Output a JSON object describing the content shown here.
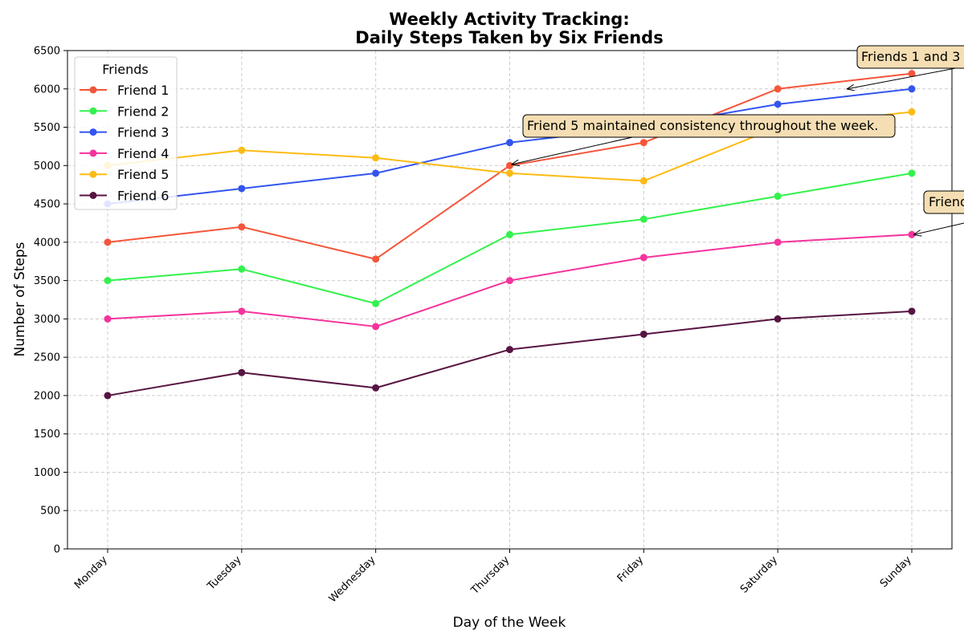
{
  "chart_data": {
    "type": "line",
    "title_line1": "Weekly Activity Tracking:",
    "title_line2": "Daily Steps Taken by Six Friends",
    "xlabel": "Day of the Week",
    "ylabel": "Number of Steps",
    "categories": [
      "Monday",
      "Tuesday",
      "Wednesday",
      "Thursday",
      "Friday",
      "Saturday",
      "Sunday"
    ],
    "ylim": [
      0,
      6500
    ],
    "yticks": [
      0,
      500,
      1000,
      1500,
      2000,
      2500,
      3000,
      3500,
      4000,
      4500,
      5000,
      5500,
      6000,
      6500
    ],
    "grid": true,
    "legend": {
      "title": "Friends",
      "placement": "upper-left"
    },
    "series": [
      {
        "name": "Friend 1",
        "color": "#f5553a",
        "values": [
          4000,
          4200,
          3780,
          5000,
          5300,
          6000,
          6200
        ]
      },
      {
        "name": "Friend 2",
        "color": "#33f24d",
        "values": [
          3500,
          3650,
          3200,
          4100,
          4300,
          4600,
          4900
        ]
      },
      {
        "name": "Friend 3",
        "color": "#3355ef",
        "values": [
          4500,
          4700,
          4900,
          5300,
          5500,
          5800,
          6000
        ]
      },
      {
        "name": "Friend 4",
        "color": "#f5339c",
        "values": [
          3000,
          3100,
          2900,
          3500,
          3800,
          4000,
          4100
        ]
      },
      {
        "name": "Friend 5",
        "color": "#fcbb14",
        "values": [
          5000,
          5200,
          5100,
          4900,
          4800,
          5500,
          5700
        ]
      },
      {
        "name": "Friend 6",
        "color": "#571442",
        "values": [
          2000,
          2300,
          2100,
          2600,
          2800,
          3000,
          3100
        ]
      }
    ],
    "annotations": [
      {
        "text": "Friends 1 and 3",
        "target_category": "Saturday",
        "target_offset": 0.52,
        "target_value": 6000
      },
      {
        "text": "Friend 5 maintained consistency throughout the week.",
        "target_category": "Thursday",
        "target_offset": 0.0,
        "target_value": 5100
      },
      {
        "text": "Friend",
        "target_category": "Sunday",
        "target_offset": 0.0,
        "target_value": 4100
      }
    ]
  }
}
